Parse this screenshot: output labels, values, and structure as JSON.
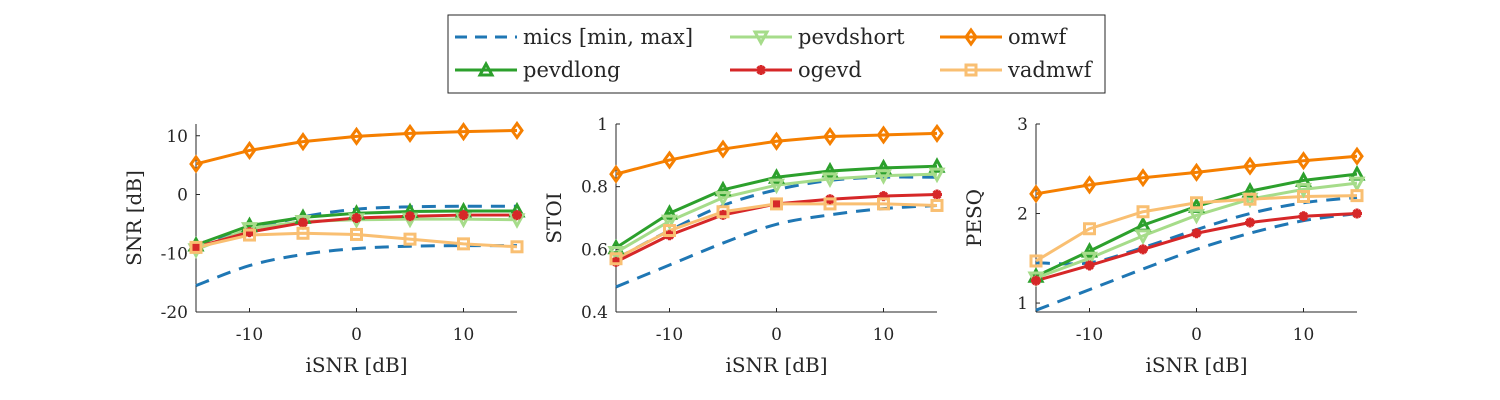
{
  "legend": {
    "entries": [
      {
        "key": "mics",
        "label": "mics [min, max]"
      },
      {
        "key": "pevdshort",
        "label": "pevdshort"
      },
      {
        "key": "omwf",
        "label": "omwf"
      },
      {
        "key": "pevdlong",
        "label": "pevdlong"
      },
      {
        "key": "ogevd",
        "label": "ogevd"
      },
      {
        "key": "vadmwf",
        "label": "vadmwf"
      }
    ],
    "placement": "top-center",
    "columns": 3
  },
  "series_styles": {
    "mics": {
      "color": "#1f77b4",
      "line": "dashed",
      "marker": "none"
    },
    "pevdshort": {
      "color": "#a6dc8a",
      "line": "solid",
      "marker": "triangle-down"
    },
    "omwf": {
      "color": "#f57f00",
      "line": "solid",
      "marker": "diamond"
    },
    "pevdlong": {
      "color": "#2ca02c",
      "line": "solid",
      "marker": "triangle-up"
    },
    "ogevd": {
      "color": "#d62728",
      "line": "solid",
      "marker": "asterisk"
    },
    "vadmwf": {
      "color": "#f9bf72",
      "line": "solid",
      "marker": "square"
    }
  },
  "chart_data": [
    {
      "type": "line",
      "xlabel": "iSNR [dB]",
      "ylabel": "SNR [dB]",
      "xlim": [
        -15,
        15
      ],
      "ylim": [
        -20,
        12
      ],
      "xticks": [
        -10,
        0,
        10
      ],
      "xtick_labels": [
        "-10",
        "0",
        "10"
      ],
      "yticks": [
        -20,
        -10,
        0,
        10
      ],
      "ytick_labels": [
        "-20",
        "-10",
        "0",
        "10"
      ],
      "grid": false,
      "x": [
        -15,
        -10,
        -5,
        0,
        5,
        10,
        15
      ],
      "series": [
        {
          "key": "mics_min",
          "style": "mics",
          "values": [
            -15.5,
            -12.1,
            -10.2,
            -9.2,
            -8.8,
            -8.7,
            -8.7
          ]
        },
        {
          "key": "mics_max",
          "style": "mics",
          "values": [
            -8.5,
            -6.0,
            -3.8,
            -2.5,
            -2.1,
            -2.0,
            -2.0
          ]
        },
        {
          "name": "omwf",
          "style": "omwf",
          "values": [
            5.2,
            7.5,
            9.0,
            9.9,
            10.4,
            10.7,
            10.9
          ]
        },
        {
          "name": "pevdlong",
          "style": "pevdlong",
          "values": [
            -8.6,
            -5.3,
            -3.9,
            -3.2,
            -2.9,
            -2.8,
            -2.8
          ]
        },
        {
          "name": "pevdshort",
          "style": "pevdshort",
          "values": [
            -9.4,
            -5.8,
            -4.6,
            -4.3,
            -4.2,
            -4.2,
            -4.3
          ]
        },
        {
          "name": "ogevd",
          "style": "ogevd",
          "values": [
            -9.0,
            -6.4,
            -4.8,
            -4.0,
            -3.7,
            -3.5,
            -3.5
          ]
        },
        {
          "name": "vadmwf",
          "style": "vadmwf",
          "values": [
            -9.0,
            -6.9,
            -6.6,
            -6.8,
            -7.6,
            -8.4,
            -8.9
          ]
        }
      ]
    },
    {
      "type": "line",
      "xlabel": "iSNR [dB]",
      "ylabel": "STOI",
      "xlim": [
        -15,
        15
      ],
      "ylim": [
        0.4,
        1.0
      ],
      "xticks": [
        -10,
        0,
        10
      ],
      "xtick_labels": [
        "-10",
        "0",
        "10"
      ],
      "yticks": [
        0.4,
        0.6,
        0.8,
        1.0
      ],
      "ytick_labels": [
        "0.4",
        "0.6",
        "0.8",
        "1"
      ],
      "grid": false,
      "x": [
        -15,
        -10,
        -5,
        0,
        5,
        10,
        15
      ],
      "series": [
        {
          "key": "mics_min",
          "style": "mics",
          "values": [
            0.48,
            0.55,
            0.62,
            0.68,
            0.71,
            0.73,
            0.74
          ]
        },
        {
          "key": "mics_max",
          "style": "mics",
          "values": [
            0.57,
            0.66,
            0.74,
            0.79,
            0.82,
            0.83,
            0.83
          ]
        },
        {
          "name": "omwf",
          "style": "omwf",
          "values": [
            0.84,
            0.885,
            0.92,
            0.945,
            0.96,
            0.965,
            0.97
          ]
        },
        {
          "name": "pevdlong",
          "style": "pevdlong",
          "values": [
            0.605,
            0.715,
            0.79,
            0.83,
            0.85,
            0.86,
            0.865
          ]
        },
        {
          "name": "pevdshort",
          "style": "pevdshort",
          "values": [
            0.59,
            0.69,
            0.765,
            0.805,
            0.825,
            0.835,
            0.84
          ]
        },
        {
          "name": "ogevd",
          "style": "ogevd",
          "values": [
            0.56,
            0.645,
            0.71,
            0.745,
            0.76,
            0.77,
            0.775
          ]
        },
        {
          "name": "vadmwf",
          "style": "vadmwf",
          "values": [
            0.57,
            0.66,
            0.72,
            0.745,
            0.745,
            0.745,
            0.74
          ]
        }
      ]
    },
    {
      "type": "line",
      "xlabel": "iSNR [dB]",
      "ylabel": "PESQ",
      "xlim": [
        -15,
        15
      ],
      "ylim": [
        0.9,
        3.0
      ],
      "xticks": [
        -10,
        0,
        10
      ],
      "xtick_labels": [
        "-10",
        "0",
        "10"
      ],
      "yticks": [
        1,
        2,
        3
      ],
      "ytick_labels": [
        "1",
        "2",
        "3"
      ],
      "grid": false,
      "x": [
        -15,
        -10,
        -5,
        0,
        5,
        10,
        15
      ],
      "series": [
        {
          "key": "mics_min",
          "style": "mics",
          "values": [
            0.92,
            1.15,
            1.38,
            1.6,
            1.78,
            1.92,
            2.0
          ]
        },
        {
          "key": "mics_max",
          "style": "mics",
          "values": [
            1.45,
            1.45,
            1.62,
            1.82,
            2.0,
            2.12,
            2.18
          ]
        },
        {
          "name": "omwf",
          "style": "omwf",
          "values": [
            2.22,
            2.32,
            2.4,
            2.46,
            2.53,
            2.59,
            2.64
          ]
        },
        {
          "name": "pevdlong",
          "style": "pevdlong",
          "values": [
            1.3,
            1.58,
            1.87,
            2.08,
            2.25,
            2.37,
            2.44
          ]
        },
        {
          "name": "pevdshort",
          "style": "pevdshort",
          "values": [
            1.28,
            1.5,
            1.75,
            1.98,
            2.16,
            2.27,
            2.34
          ]
        },
        {
          "name": "ogevd",
          "style": "ogevd",
          "values": [
            1.25,
            1.42,
            1.6,
            1.78,
            1.9,
            1.97,
            2.0
          ]
        },
        {
          "name": "vadmwf",
          "style": "vadmwf",
          "values": [
            1.47,
            1.83,
            2.02,
            2.12,
            2.16,
            2.19,
            2.2
          ]
        }
      ]
    }
  ]
}
